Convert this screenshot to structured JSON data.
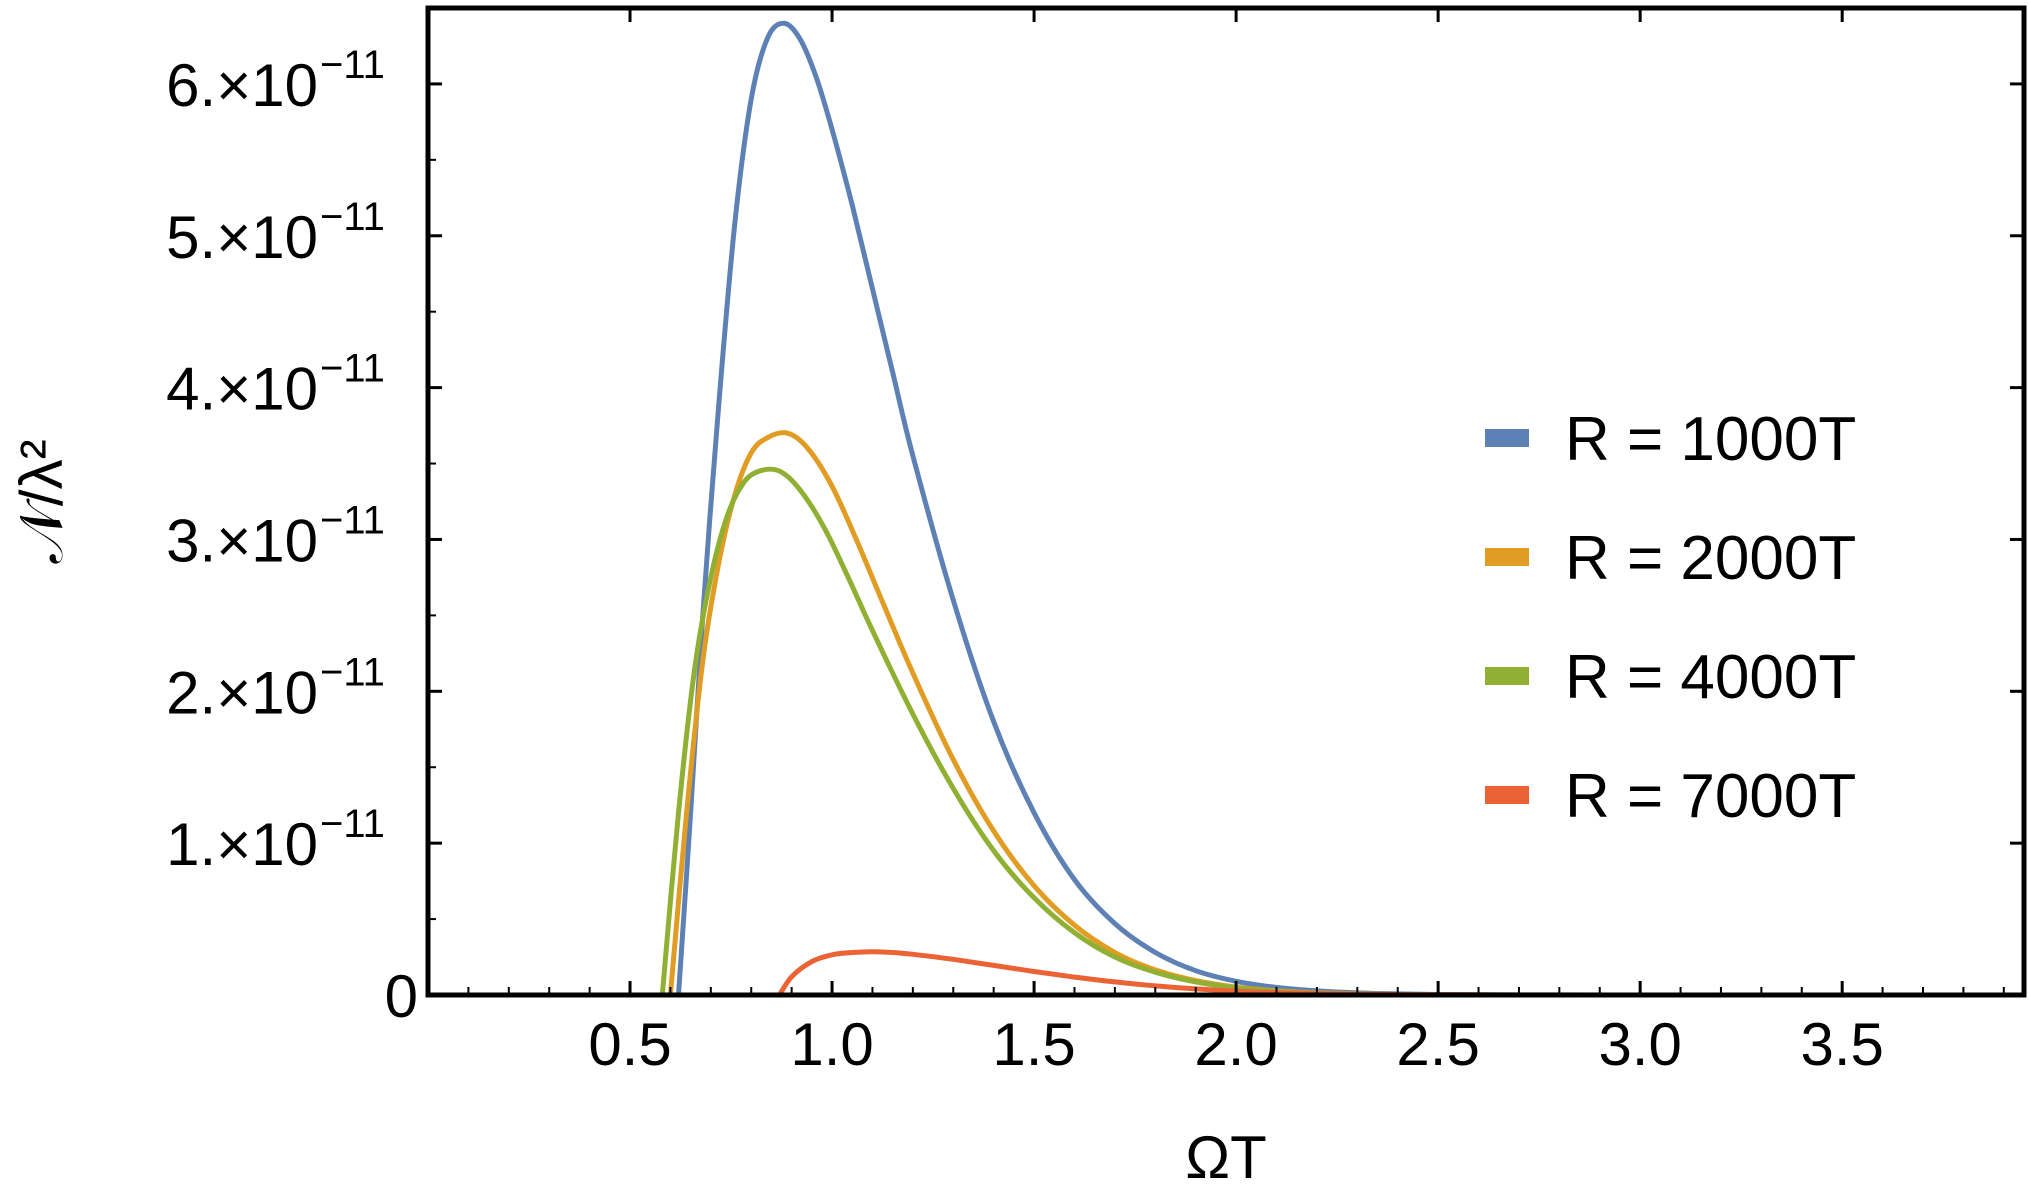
{
  "chart_data": {
    "type": "line",
    "xlabel": "ΩT",
    "ylabel": "𝒩/λ²",
    "xlim": [
      0,
      3.95
    ],
    "ylim": [
      0,
      6.5e-11
    ],
    "frame": true,
    "grid": false,
    "legend_position": "right",
    "x_ticks": [
      {
        "value": 0.5,
        "label": "0.5"
      },
      {
        "value": 1.0,
        "label": "1.0"
      },
      {
        "value": 1.5,
        "label": "1.5"
      },
      {
        "value": 2.0,
        "label": "2.0"
      },
      {
        "value": 2.5,
        "label": "2.5"
      },
      {
        "value": 3.0,
        "label": "3.0"
      },
      {
        "value": 3.5,
        "label": "3.5"
      }
    ],
    "y_ticks": [
      {
        "value": 0,
        "label": "0",
        "exponent": ""
      },
      {
        "value": 1e-11,
        "label": "1.×10",
        "exponent": "−11"
      },
      {
        "value": 2e-11,
        "label": "2.×10",
        "exponent": "−11"
      },
      {
        "value": 3e-11,
        "label": "3.×10",
        "exponent": "−11"
      },
      {
        "value": 4e-11,
        "label": "4.×10",
        "exponent": "−11"
      },
      {
        "value": 5e-11,
        "label": "5.×10",
        "exponent": "−11"
      },
      {
        "value": 6e-11,
        "label": "6.×10",
        "exponent": "−11"
      }
    ],
    "series": [
      {
        "name": "R = 1000T",
        "color": "#5E81B5",
        "x": [
          0.62,
          0.65,
          0.68,
          0.72,
          0.76,
          0.8,
          0.84,
          0.88,
          0.92,
          0.96,
          1.0,
          1.05,
          1.1,
          1.15,
          1.2,
          1.3,
          1.4,
          1.5,
          1.6,
          1.7,
          1.8,
          1.9,
          2.0,
          2.1,
          2.2,
          2.3,
          2.4,
          2.5,
          2.6,
          2.7,
          2.8,
          3.0,
          3.2
        ],
        "y": [
          0,
          1.2e-11,
          2.5e-11,
          3.9e-11,
          5.1e-11,
          5.9e-11,
          6.3e-11,
          6.4e-11,
          6.3e-11,
          6.05e-11,
          5.7e-11,
          5.2e-11,
          4.65e-11,
          4.1e-11,
          3.55e-11,
          2.6e-11,
          1.8e-11,
          1.2e-11,
          7.6e-12,
          4.7e-12,
          2.8e-12,
          1.6e-12,
          9e-13,
          5e-13,
          2.7e-13,
          1.4e-13,
          7e-14,
          3.5e-14,
          1.7e-14,
          8e-15,
          4e-15,
          1e-15,
          2e-16
        ]
      },
      {
        "name": "R = 2000T",
        "color": "#E19C24",
        "x": [
          0.6,
          0.64,
          0.68,
          0.72,
          0.76,
          0.8,
          0.84,
          0.89,
          0.94,
          1.0,
          1.06,
          1.12,
          1.2,
          1.3,
          1.4,
          1.5,
          1.6,
          1.7,
          1.8,
          1.9,
          2.0,
          2.1,
          2.2,
          2.3,
          2.4,
          2.5,
          2.6,
          2.8,
          3.0
        ],
        "y": [
          0,
          1.2e-11,
          2.2e-11,
          2.85e-11,
          3.3e-11,
          3.57e-11,
          3.67e-11,
          3.7e-11,
          3.6e-11,
          3.35e-11,
          3e-11,
          2.62e-11,
          2.12e-11,
          1.55e-11,
          1.08e-11,
          7.2e-12,
          4.6e-12,
          2.8e-12,
          1.65e-12,
          9.5e-13,
          5.2e-13,
          2.8e-13,
          1.4e-13,
          7e-14,
          3.5e-14,
          1.6e-14,
          8e-15,
          2e-15,
          4e-16
        ]
      },
      {
        "name": "R = 4000T",
        "color": "#8FB032",
        "x": [
          0.58,
          0.62,
          0.66,
          0.7,
          0.74,
          0.78,
          0.82,
          0.87,
          0.92,
          0.98,
          1.04,
          1.1,
          1.2,
          1.3,
          1.4,
          1.5,
          1.6,
          1.7,
          1.8,
          1.9,
          2.0,
          2.1,
          2.2,
          2.3,
          2.4,
          2.5,
          2.6,
          2.8,
          3.0
        ],
        "y": [
          0,
          1.2e-11,
          2.15e-11,
          2.75e-11,
          3.15e-11,
          3.37e-11,
          3.45e-11,
          3.45e-11,
          3.33e-11,
          3.08e-11,
          2.75e-11,
          2.4e-11,
          1.85e-11,
          1.36e-11,
          9.5e-12,
          6.4e-12,
          4.1e-12,
          2.5e-12,
          1.5e-12,
          8.6e-13,
          4.7e-13,
          2.5e-13,
          1.3e-13,
          6.5e-14,
          3.2e-14,
          1.5e-14,
          7e-15,
          1.5e-15,
          3e-16
        ]
      },
      {
        "name": "R = 7000T",
        "color": "#EB6235",
        "x": [
          0.87,
          0.9,
          0.95,
          1.0,
          1.05,
          1.1,
          1.15,
          1.2,
          1.3,
          1.4,
          1.5,
          1.6,
          1.7,
          1.8,
          1.9,
          2.0,
          2.1,
          2.2,
          2.3,
          2.4,
          2.5,
          2.6,
          2.8
        ],
        "y": [
          0,
          1.2e-12,
          2.2e-12,
          2.65e-12,
          2.8e-12,
          2.85e-12,
          2.8e-12,
          2.68e-12,
          2.35e-12,
          1.95e-12,
          1.55e-12,
          1.18e-12,
          8.6e-13,
          6e-13,
          4e-13,
          2.6e-13,
          1.6e-13,
          9.5e-14,
          5.5e-14,
          3e-14,
          1.6e-14,
          8e-15,
          2e-15
        ]
      }
    ]
  }
}
